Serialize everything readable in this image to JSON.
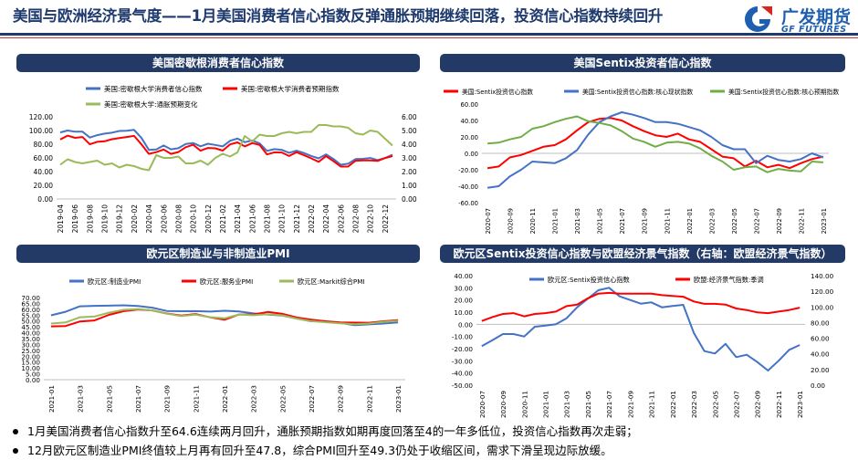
{
  "header": {
    "title": "美国与欧洲经济景气度——1月美国消费者信心指数反弹通胀预期继续回落，投资信心指数持续回升",
    "logo_cn": "广发期货",
    "logo_en": "GF FUTURES"
  },
  "colors": {
    "navy": "#233a66",
    "blue": "#4472c4",
    "red": "#ff0000",
    "green": "#9bbb59"
  },
  "notes": [
    "1月美国消费者信心指数升至64.6连续两月回升，通胀预期指数如期再度回落至4的一年多低位，投资信心指数再次走弱；",
    "12月欧元区制造业PMI终值较上月再有回升至47.8，综合PMI回升至49.3仍处于收缩区间，需求下滑呈现边际放缓。"
  ],
  "chart_data": [
    {
      "title": "美国密歇根消费者信心指数",
      "type": "line",
      "x": [
        "2019-04",
        "2019-05",
        "2019-06",
        "2019-07",
        "2019-08",
        "2019-09",
        "2019-10",
        "2019-11",
        "2019-12",
        "2020-01",
        "2020-02",
        "2020-03",
        "2020-04",
        "2020-05",
        "2020-06",
        "2020-07",
        "2020-08",
        "2020-09",
        "2020-10",
        "2020-11",
        "2020-12",
        "2021-01",
        "2021-02",
        "2021-03",
        "2021-04",
        "2021-05",
        "2021-06",
        "2021-07",
        "2021-08",
        "2021-09",
        "2021-10",
        "2021-11",
        "2021-12",
        "2022-01",
        "2022-02",
        "2022-03",
        "2022-04",
        "2022-05",
        "2022-06",
        "2022-07",
        "2022-08",
        "2022-09",
        "2022-10",
        "2022-11",
        "2022-12",
        "2023-01"
      ],
      "x_ticks": [
        "2019-04",
        "2019-06",
        "2019-08",
        "2019-10",
        "2019-12",
        "2020-02",
        "2020-04",
        "2020-06",
        "2020-08",
        "2020-10",
        "2020-12",
        "2021-02",
        "2021-04",
        "2021-06",
        "2021-08",
        "2021-10",
        "2021-12",
        "2022-02",
        "2022-04",
        "2022-06",
        "2022-08",
        "2022-10",
        "2022-12"
      ],
      "y_ticks": [
        "0.00",
        "20.00",
        "40.00",
        "60.00",
        "80.00",
        "100.00",
        "120.00"
      ],
      "y2_ticks": [
        "0.00",
        "1.00",
        "2.00",
        "3.00",
        "4.00",
        "5.00",
        "6.00"
      ],
      "ylim": [
        0,
        120
      ],
      "y2lim": [
        0,
        6
      ],
      "legend_position": "top",
      "series": [
        {
          "name": "美国:密歇根大学消费者信心指数",
          "color": "#4472c4",
          "axis": "left",
          "values": [
            97.2,
            100.0,
            98.2,
            98.4,
            89.8,
            93.2,
            95.5,
            96.8,
            99.3,
            99.8,
            101.0,
            89.1,
            71.8,
            72.3,
            78.1,
            72.5,
            74.1,
            80.4,
            81.8,
            76.9,
            80.7,
            79.0,
            76.8,
            84.9,
            88.3,
            82.9,
            85.5,
            81.2,
            70.3,
            72.8,
            71.7,
            67.4,
            70.6,
            67.2,
            62.8,
            59.4,
            65.2,
            58.4,
            50.0,
            51.5,
            58.2,
            58.6,
            59.9,
            56.8,
            59.7,
            64.6
          ]
        },
        {
          "name": "美国:密歇根大学消费者预期指数",
          "color": "#ff0000",
          "axis": "left",
          "values": [
            87.0,
            92.5,
            89.3,
            90.5,
            79.9,
            83.4,
            84.2,
            87.3,
            88.9,
            90.5,
            92.1,
            79.7,
            65.9,
            68.4,
            72.3,
            65.9,
            68.5,
            75.6,
            79.2,
            70.5,
            74.6,
            74.0,
            70.7,
            79.7,
            82.7,
            76.8,
            81.6,
            79.0,
            65.1,
            68.1,
            67.9,
            62.8,
            68.3,
            64.1,
            59.4,
            54.3,
            62.5,
            55.2,
            47.3,
            47.3,
            55.9,
            56.2,
            56.2,
            55.6,
            59.9,
            62.7
          ]
        },
        {
          "name": "美国:密歇根大学:通胀预期变化",
          "color": "#9bbb59",
          "axis": "right",
          "values": [
            2.5,
            2.9,
            2.7,
            2.6,
            2.7,
            2.8,
            2.5,
            2.6,
            2.3,
            2.5,
            2.4,
            2.2,
            2.1,
            3.2,
            3.0,
            3.0,
            3.1,
            2.6,
            2.6,
            2.8,
            2.5,
            3.0,
            3.3,
            3.1,
            3.4,
            4.6,
            4.2,
            4.7,
            4.6,
            4.6,
            4.8,
            4.9,
            4.8,
            4.9,
            4.9,
            5.4,
            5.4,
            5.3,
            5.3,
            5.2,
            4.8,
            4.7,
            5.0,
            4.9,
            4.4,
            3.9
          ]
        }
      ]
    },
    {
      "title": "美国Sentix投资者信心指数",
      "type": "line",
      "x": [
        "2020-07",
        "2020-08",
        "2020-09",
        "2020-10",
        "2020-11",
        "2020-12",
        "2021-01",
        "2021-02",
        "2021-03",
        "2021-04",
        "2021-05",
        "2021-06",
        "2021-07",
        "2021-08",
        "2021-09",
        "2021-10",
        "2021-11",
        "2021-12",
        "2022-01",
        "2022-02",
        "2022-03",
        "2022-04",
        "2022-05",
        "2022-06",
        "2022-07",
        "2022-08",
        "2022-09",
        "2022-10",
        "2022-11",
        "2022-12",
        "2023-01"
      ],
      "x_ticks": [
        "2020-07",
        "2020-09",
        "2020-11",
        "2021-01",
        "2021-03",
        "2021-05",
        "2021-07",
        "2021-09",
        "2021-11",
        "2022-01",
        "2022-03",
        "2022-05",
        "2022-07",
        "2022-09",
        "2022-11",
        "2023-01"
      ],
      "y_ticks": [
        "-60.00",
        "-40.00",
        "-20.00",
        "0.00",
        "20.00",
        "40.00",
        "60.00"
      ],
      "ylim": [
        -60,
        60
      ],
      "legend_position": "top",
      "series": [
        {
          "name": "美国:Sentix投资信心指数",
          "color": "#ff0000",
          "values": [
            -18,
            -16,
            -5,
            -2,
            3,
            8,
            10,
            17,
            28,
            38,
            42,
            43,
            40,
            33,
            27,
            22,
            20,
            24,
            17,
            14,
            5,
            -4,
            -6,
            -16,
            -9,
            -17,
            -14,
            -18,
            -12,
            -7,
            -4
          ]
        },
        {
          "name": "美国:Sentix投资信心指数:核心现状指数",
          "color": "#4472c4",
          "values": [
            -42,
            -40,
            -28,
            -20,
            -10,
            -11,
            -12,
            -6,
            4,
            23,
            38,
            45,
            50,
            47,
            43,
            38,
            38,
            36,
            32,
            28,
            20,
            10,
            5,
            5,
            -12,
            -3,
            -8,
            -10,
            -7,
            0,
            -5
          ]
        },
        {
          "name": "美国:Sentix投资信心指数:核心预期指数",
          "color": "#70ad47",
          "values": [
            12,
            13,
            17,
            20,
            30,
            33,
            38,
            42,
            45,
            39,
            37,
            34,
            27,
            18,
            14,
            8,
            13,
            14,
            12,
            6,
            -3,
            -10,
            -20,
            -17,
            -16,
            -23,
            -19,
            -21,
            -22,
            -10,
            -11
          ]
        }
      ]
    },
    {
      "title": "欧元区制造业与非制造业PMI",
      "type": "line",
      "x": [
        "2021-01",
        "2021-02",
        "2021-03",
        "2021-04",
        "2021-05",
        "2021-06",
        "2021-07",
        "2021-08",
        "2021-09",
        "2021-10",
        "2021-11",
        "2021-12",
        "2022-01",
        "2022-02",
        "2022-03",
        "2022-04",
        "2022-05",
        "2022-06",
        "2022-07",
        "2022-08",
        "2022-09",
        "2022-10",
        "2022-11",
        "2022-12",
        "2023-01"
      ],
      "x_ticks": [
        "2021-01",
        "2021-03",
        "2021-05",
        "2021-07",
        "2021-09",
        "2021-11",
        "2022-01",
        "2022-03",
        "2022-05",
        "2022-07",
        "2022-09",
        "2022-11",
        "2023-01"
      ],
      "y_ticks": [
        "0.00",
        "5.00",
        "10.00",
        "15.00",
        "20.00",
        "25.00",
        "30.00",
        "35.00",
        "40.00",
        "45.00",
        "50.00",
        "55.00",
        "60.00",
        "65.00",
        "70.00"
      ],
      "ylim": [
        0,
        70
      ],
      "legend_position": "top",
      "series": [
        {
          "name": "欧元区:制造业PMI",
          "color": "#4472c4",
          "values": [
            54.8,
            57.9,
            62.5,
            62.9,
            63.1,
            63.4,
            62.8,
            61.4,
            58.6,
            58.3,
            58.4,
            58.0,
            58.7,
            58.2,
            56.5,
            55.5,
            54.6,
            52.1,
            49.8,
            49.6,
            48.4,
            46.4,
            47.1,
            47.8,
            48.8
          ]
        },
        {
          "name": "欧元区:服务业PMI",
          "color": "#ff0000",
          "values": [
            45.4,
            45.7,
            49.6,
            50.5,
            55.2,
            58.3,
            59.8,
            59.0,
            56.4,
            54.6,
            55.9,
            53.1,
            51.1,
            55.5,
            55.6,
            57.7,
            56.1,
            53.0,
            51.2,
            49.8,
            48.8,
            48.6,
            48.5,
            49.8,
            50.7
          ]
        },
        {
          "name": "欧元区:Markit综合PMI",
          "color": "#9bbb59",
          "values": [
            47.8,
            48.8,
            53.2,
            53.8,
            57.1,
            59.5,
            60.2,
            59.0,
            56.2,
            54.2,
            55.4,
            53.3,
            52.3,
            55.5,
            54.9,
            55.8,
            54.8,
            52.0,
            49.9,
            48.9,
            48.1,
            47.3,
            47.8,
            49.3,
            50.2
          ]
        }
      ]
    },
    {
      "title": "欧元区Sentix投资信心指数与欧盟经济景气指数（右轴：欧盟经济景气指数）",
      "type": "line",
      "x": [
        "2020-07",
        "2020-08",
        "2020-09",
        "2020-10",
        "2020-11",
        "2020-12",
        "2021-01",
        "2021-02",
        "2021-03",
        "2021-04",
        "2021-05",
        "2021-06",
        "2021-07",
        "2021-08",
        "2021-09",
        "2021-10",
        "2021-11",
        "2021-12",
        "2022-01",
        "2022-02",
        "2022-03",
        "2022-04",
        "2022-05",
        "2022-06",
        "2022-07",
        "2022-08",
        "2022-09",
        "2022-10",
        "2022-11",
        "2022-12",
        "2023-01"
      ],
      "x_ticks": [
        "2020-07",
        "2020-09",
        "2020-11",
        "2021-01",
        "2021-03",
        "2021-05",
        "2021-07",
        "2021-09",
        "2021-11",
        "2022-01",
        "2022-03",
        "2022-05",
        "2022-07",
        "2022-09",
        "2022-11",
        "2023-01"
      ],
      "y_ticks": [
        "-50.00",
        "-40.00",
        "-30.00",
        "-20.00",
        "-10.00",
        "0.00",
        "10.00",
        "20.00",
        "30.00",
        "40.00"
      ],
      "y2_ticks": [
        "0.00",
        "20.00",
        "40.00",
        "60.00",
        "80.00",
        "100.00",
        "120.00",
        "140.00"
      ],
      "ylim": [
        -50,
        40
      ],
      "y2lim": [
        0,
        140
      ],
      "legend_position": "top",
      "series": [
        {
          "name": "欧元区:Sentix投资信心指数",
          "color": "#4472c4",
          "axis": "left",
          "values": [
            -18,
            -13,
            -8,
            -8,
            -10,
            -2,
            -1,
            0,
            5,
            14,
            21,
            28,
            30,
            23,
            20,
            17,
            18,
            14,
            15,
            16,
            -7,
            -22,
            -24,
            -16,
            -27,
            -25,
            -31,
            -38,
            -30,
            -21,
            -17
          ]
        },
        {
          "name": "欧盟:经济景气指数:季调",
          "color": "#ff0000",
          "axis": "right",
          "values": [
            82,
            87,
            91,
            92,
            88,
            91,
            92,
            94,
            101,
            103,
            111,
            117,
            118,
            117,
            117,
            117,
            117,
            115,
            114,
            113,
            107,
            104,
            104,
            103,
            98,
            96,
            93,
            92,
            94,
            96,
            99
          ]
        }
      ]
    }
  ]
}
